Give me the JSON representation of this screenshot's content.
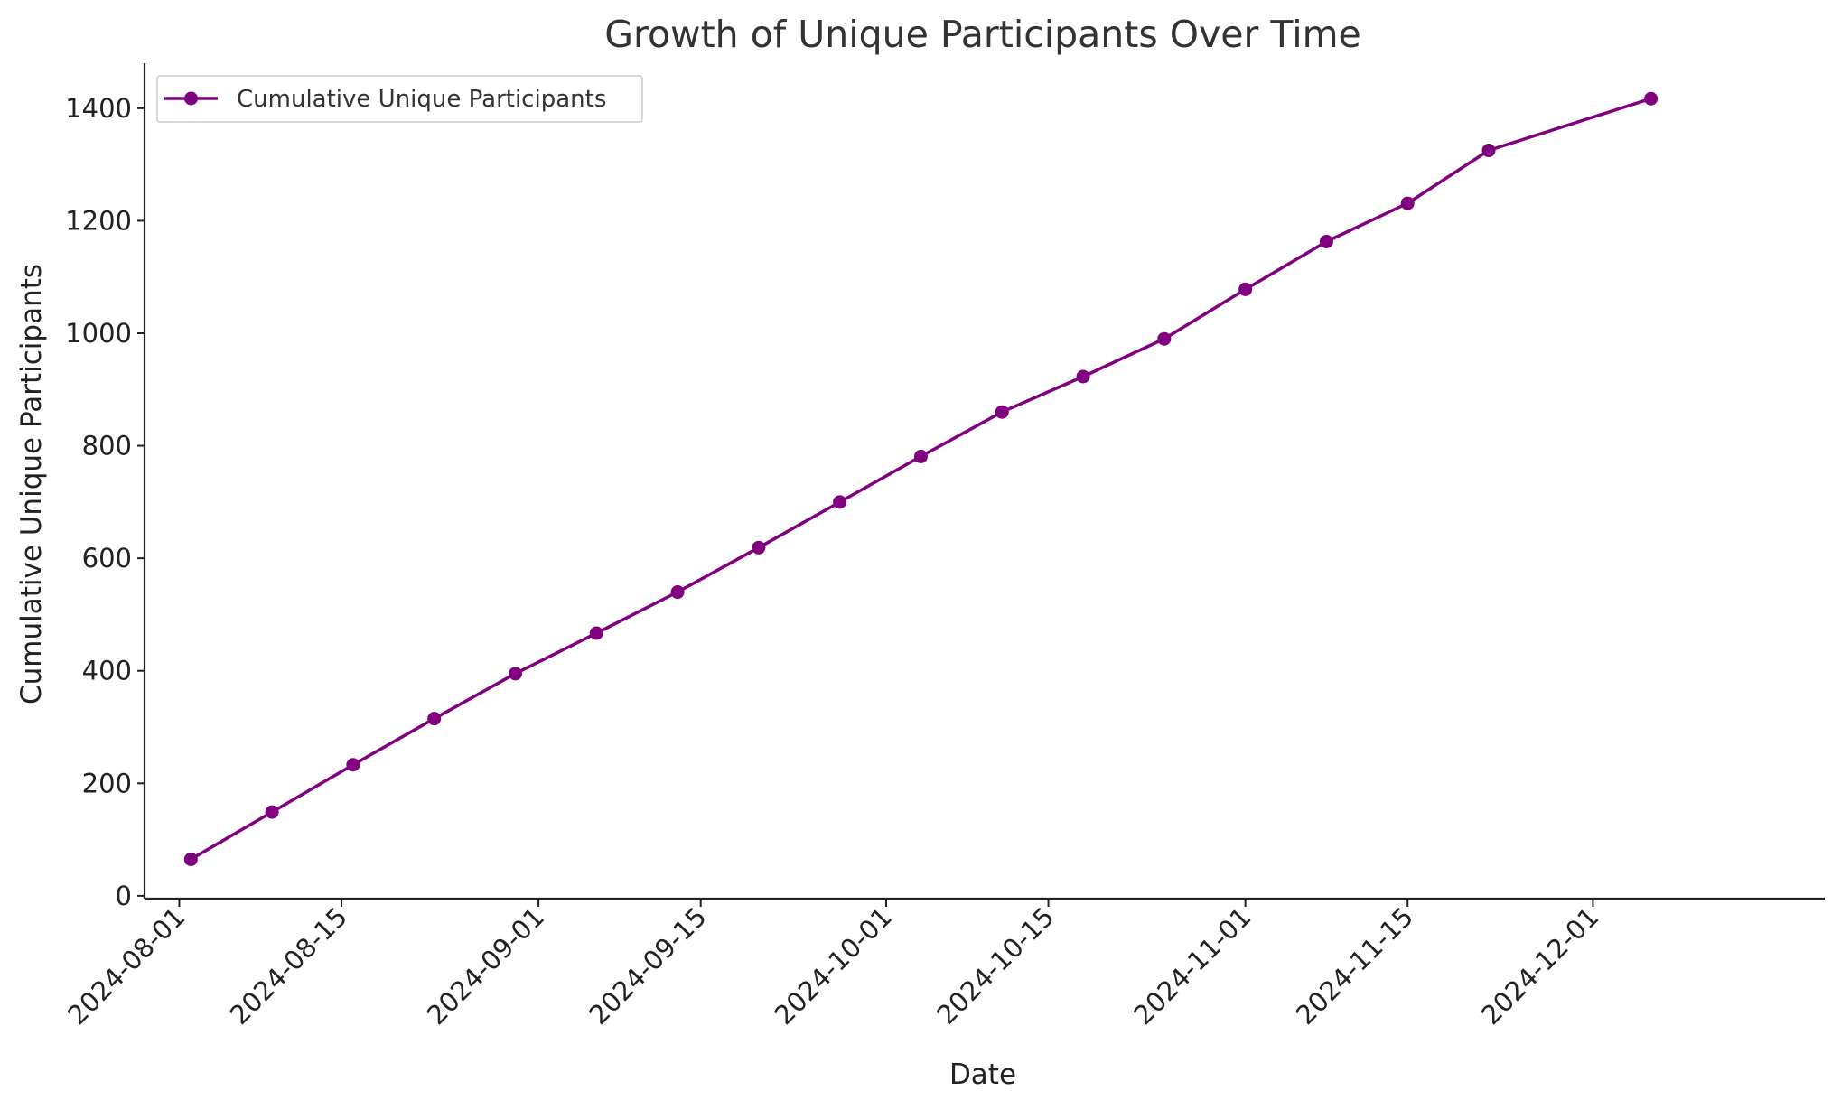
{
  "chart_data": {
    "type": "line",
    "title": "Growth of Unique Participants Over Time",
    "xlabel": "Date",
    "ylabel": "Cumulative Unique Participants",
    "x_axis_type": "date",
    "xlim": [
      "2024-07-29",
      "2024-12-21"
    ],
    "ylim": [
      -5,
      1480
    ],
    "x_ticks": [
      "2024-08-01",
      "2024-08-15",
      "2024-09-01",
      "2024-09-15",
      "2024-10-01",
      "2024-10-15",
      "2024-11-01",
      "2024-11-15",
      "2024-12-01"
    ],
    "y_ticks": [
      0,
      200,
      400,
      600,
      800,
      1000,
      1200,
      1400
    ],
    "grid": false,
    "legend_position": "upper-left",
    "color": "#800080",
    "series": [
      {
        "name": "Cumulative Unique Participants",
        "x": [
          "2024-08-02",
          "2024-08-09",
          "2024-08-16",
          "2024-08-23",
          "2024-08-30",
          "2024-09-06",
          "2024-09-13",
          "2024-09-20",
          "2024-09-27",
          "2024-10-04",
          "2024-10-11",
          "2024-10-18",
          "2024-10-25",
          "2024-11-01",
          "2024-11-08",
          "2024-11-15",
          "2024-11-22",
          "2024-12-06"
        ],
        "y": [
          65,
          149,
          233,
          315,
          395,
          467,
          540,
          619,
          700,
          781,
          860,
          923,
          990,
          1078,
          1163,
          1231,
          1325,
          1417
        ]
      }
    ]
  }
}
